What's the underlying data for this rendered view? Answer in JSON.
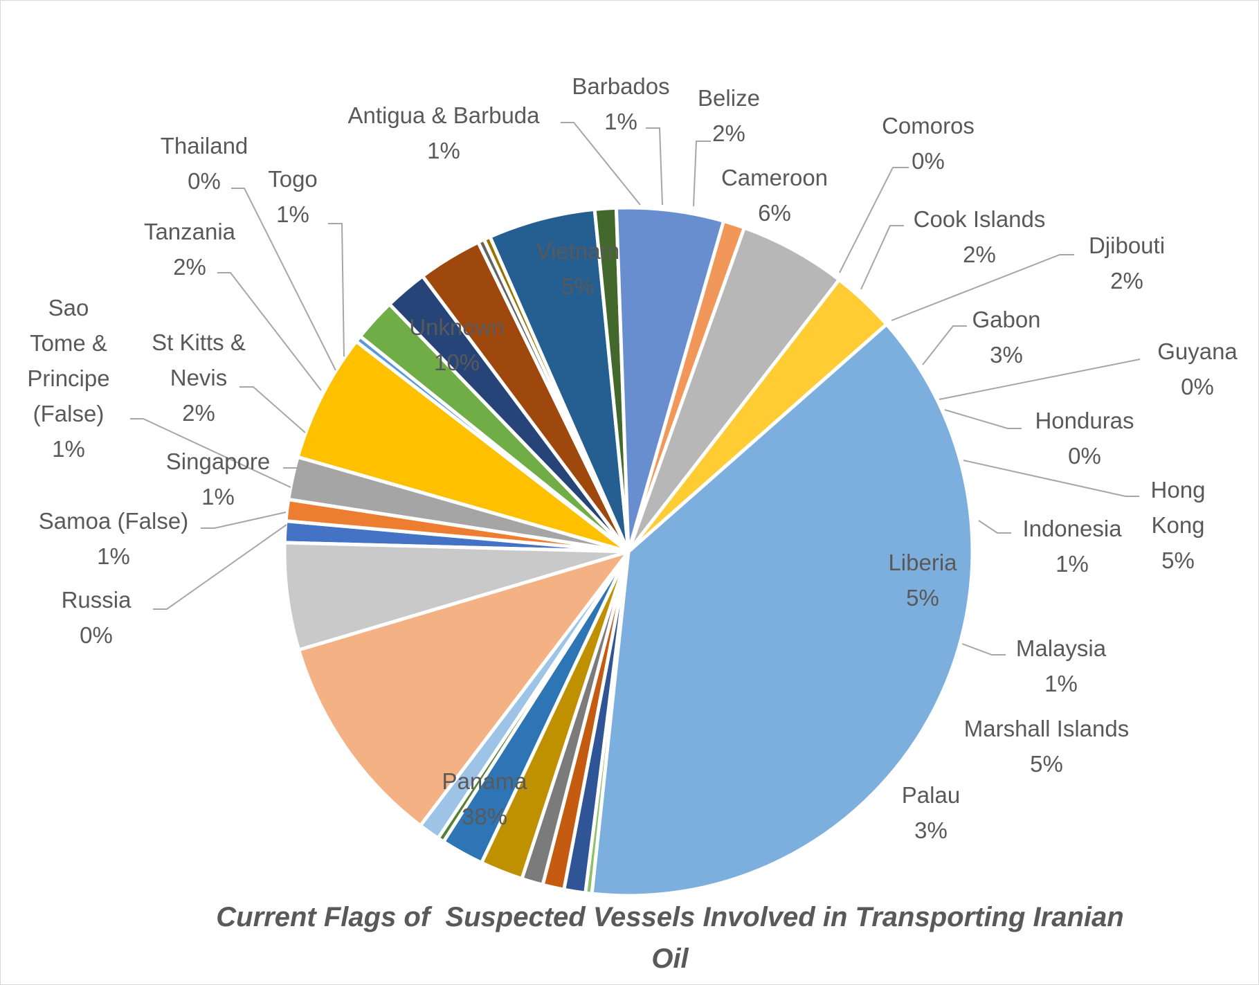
{
  "chart_data": {
    "type": "pie",
    "title": "Current Flags of  Suspected Vessels Involved in Transporting Iranian Oil",
    "slices": [
      {
        "name": "Antigua & Barbuda",
        "value": 1,
        "label": "1%",
        "color": "#4472c4"
      },
      {
        "name": "Barbados",
        "value": 1,
        "label": "1%",
        "color": "#ed7d31"
      },
      {
        "name": "Belize",
        "value": 2,
        "label": "2%",
        "color": "#a5a5a5"
      },
      {
        "name": "Cameroon",
        "value": 6,
        "label": "6%",
        "color": "#ffc000"
      },
      {
        "name": "Comoros",
        "value": 0.3,
        "label": "0%",
        "color": "#5b9bd5"
      },
      {
        "name": "Cook Islands",
        "value": 2,
        "label": "2%",
        "color": "#70ad47"
      },
      {
        "name": "Djibouti",
        "value": 2,
        "label": "2%",
        "color": "#264478"
      },
      {
        "name": "Gabon",
        "value": 3,
        "label": "3%",
        "color": "#9e480e"
      },
      {
        "name": "Guyana",
        "value": 0.3,
        "label": "0%",
        "color": "#636363"
      },
      {
        "name": "Honduras",
        "value": 0.3,
        "label": "0%",
        "color": "#997300"
      },
      {
        "name": "Hong Kong",
        "value": 5,
        "label": "5%",
        "color": "#255e91"
      },
      {
        "name": "Indonesia",
        "value": 1,
        "label": "1%",
        "color": "#43682b"
      },
      {
        "name": "Liberia",
        "value": 5,
        "label": "5%",
        "color": "#698ed0"
      },
      {
        "name": "Malaysia",
        "value": 1,
        "label": "1%",
        "color": "#f1975a"
      },
      {
        "name": "Marshall Islands",
        "value": 5,
        "label": "5%",
        "color": "#b7b7b7"
      },
      {
        "name": "Palau",
        "value": 3,
        "label": "3%",
        "color": "#ffcd33"
      },
      {
        "name": "Panama",
        "value": 38,
        "label": "38%",
        "color": "#7cafdd"
      },
      {
        "name": "Russia",
        "value": 0.3,
        "label": "0%",
        "color": "#8cc168"
      },
      {
        "name": "Samoa (False)",
        "value": 1,
        "label": "1%",
        "color": "#2f5597"
      },
      {
        "name": "Sao Tome & Principe (False)",
        "value": 1,
        "label": "1%",
        "color": "#c55a11"
      },
      {
        "name": "Singapore",
        "value": 1,
        "label": "1%",
        "color": "#7b7b7b"
      },
      {
        "name": "St Kitts & Nevis",
        "value": 2,
        "label": "2%",
        "color": "#bf9000"
      },
      {
        "name": "Tanzania",
        "value": 2,
        "label": "2%",
        "color": "#2e75b6"
      },
      {
        "name": "Thailand",
        "value": 0.3,
        "label": "0%",
        "color": "#548235"
      },
      {
        "name": "Togo",
        "value": 1,
        "label": "1%",
        "color": "#9dc3e6"
      },
      {
        "name": "Unknown",
        "value": 10,
        "label": "10%",
        "color": "#f4b183"
      },
      {
        "name": "Vietnam",
        "value": 5,
        "label": "5%",
        "color": "#c9c9c9"
      }
    ]
  }
}
